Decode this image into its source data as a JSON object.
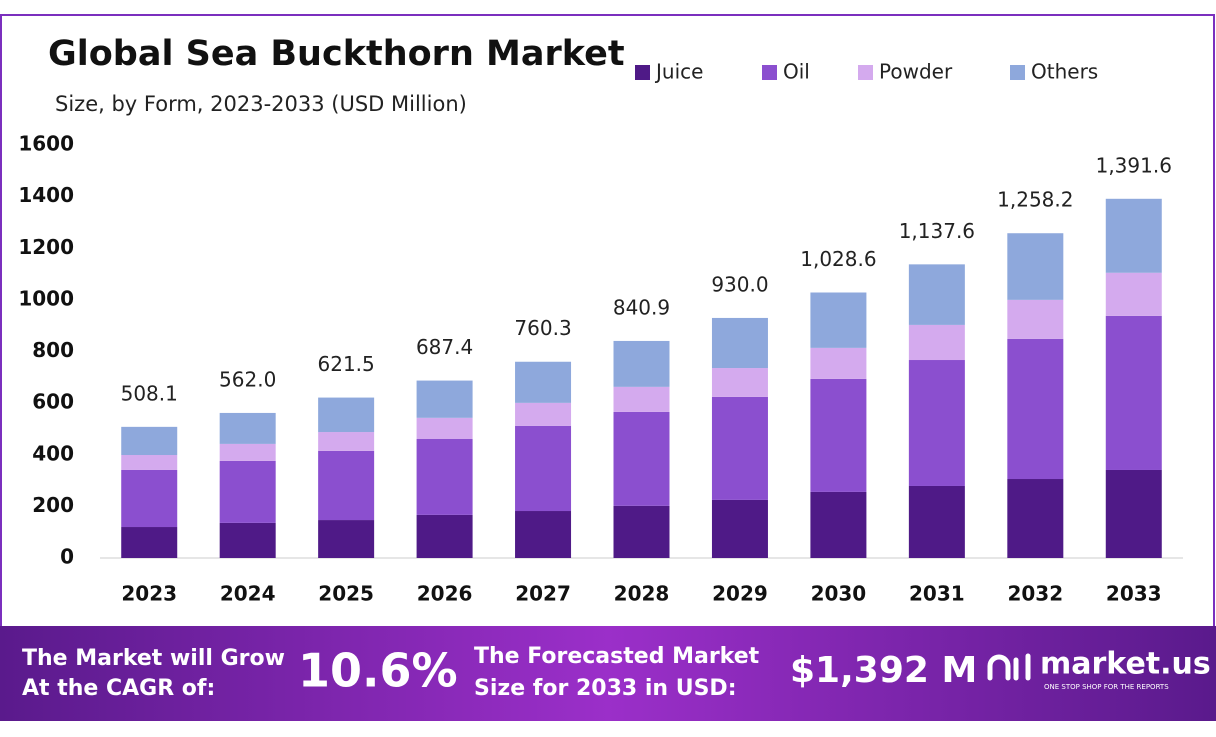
{
  "chart_data": {
    "type": "stacked-bar",
    "title": "Global Sea Buckthorn Market",
    "subtitle": "Size, by Form, 2023-2033 (USD Million)",
    "categories": [
      "2023",
      "2024",
      "2025",
      "2026",
      "2027",
      "2028",
      "2029",
      "2030",
      "2031",
      "2032",
      "2033"
    ],
    "series": [
      {
        "name": "Juice",
        "color": "#4f1a87",
        "values": [
          120,
          136,
          147,
          167,
          182,
          202,
          225,
          256,
          279,
          306,
          341
        ]
      },
      {
        "name": "Oil",
        "color": "#8b4fcf",
        "values": [
          221,
          240,
          268,
          294,
          330,
          364,
          399,
          438,
          488,
          543,
          597
        ]
      },
      {
        "name": "Powder",
        "color": "#d4aaee",
        "values": [
          58,
          66,
          73,
          82,
          89,
          97,
          112,
          120,
          136,
          151,
          167
        ]
      },
      {
        "name": "Others",
        "color": "#8ea8dc",
        "values": [
          109.1,
          120,
          133.5,
          144.4,
          159.3,
          177.9,
          194,
          214.6,
          234.6,
          258.2,
          286.6
        ]
      }
    ],
    "totals": {
      "values": [
        508.1,
        562.0,
        621.5,
        687.4,
        760.3,
        840.9,
        930.0,
        1028.6,
        1137.6,
        1258.2,
        1391.6
      ],
      "value_labels": [
        "508.1",
        "562.0",
        "621.5",
        "687.4",
        "760.3",
        "840.9",
        "930.0",
        "1,028.6",
        "1,137.6",
        "1,258.2",
        "1,391.6"
      ]
    },
    "ylim": [
      0,
      1600
    ],
    "yticks": [
      0,
      200,
      400,
      600,
      800,
      1000,
      1200,
      1400,
      1600
    ],
    "grid": false,
    "legend": "top"
  },
  "footer": {
    "cagr_text": [
      "The Market will Grow",
      "At the CAGR of:"
    ],
    "cagr": "10.6%",
    "forecast_text": [
      "The Forecasted Market",
      "Size for 2033 in USD:"
    ],
    "forecast": "$1,392 M",
    "brand": "market.us",
    "tagline": "ONE STOP SHOP FOR THE REPORTS"
  }
}
